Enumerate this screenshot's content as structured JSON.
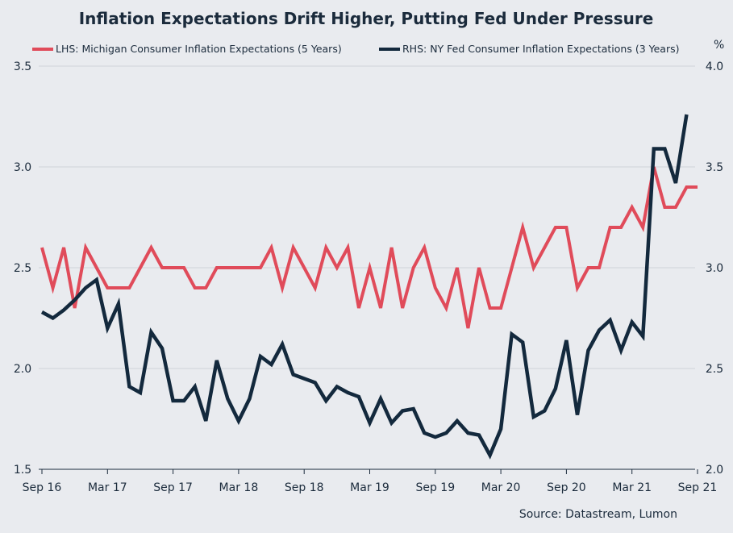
{
  "chart_data": {
    "type": "line",
    "title": "Inflation Expectations Drift Higher, Putting Fed Under Pressure",
    "source": "Source: Datastream, Lumon",
    "right_unit": "%",
    "x_tick_labels": [
      "Sep 16",
      "Mar 17",
      "Sep 17",
      "Mar 18",
      "Sep 18",
      "Mar 19",
      "Sep 19",
      "Mar 20",
      "Sep 20",
      "Mar 21",
      "Sep 21"
    ],
    "left_axis": {
      "ylim": [
        1.5,
        3.5
      ],
      "ticks": [
        "1.5",
        "2.0",
        "2.5",
        "3.0",
        "3.5"
      ]
    },
    "right_axis": {
      "ylim": [
        2.0,
        4.0
      ],
      "ticks": [
        "2.0",
        "2.5",
        "3.0",
        "3.5",
        "4.0"
      ]
    },
    "grid": true,
    "legend_position": "top",
    "series": [
      {
        "name": "LHS: Michigan Consumer Inflation Expectations (5 Years)",
        "axis": "left",
        "color": "#e04b5a",
        "x_start": "Sep 16",
        "values": [
          2.6,
          2.4,
          2.6,
          2.3,
          2.6,
          2.5,
          2.4,
          2.4,
          2.4,
          2.5,
          2.6,
          2.5,
          2.5,
          2.5,
          2.4,
          2.4,
          2.5,
          2.5,
          2.5,
          2.5,
          2.5,
          2.6,
          2.4,
          2.6,
          2.5,
          2.4,
          2.6,
          2.5,
          2.6,
          2.3,
          2.5,
          2.3,
          2.6,
          2.3,
          2.5,
          2.6,
          2.4,
          2.3,
          2.5,
          2.2,
          2.5,
          2.3,
          2.3,
          2.5,
          2.7,
          2.5,
          2.6,
          2.7,
          2.7,
          2.4,
          2.5,
          2.5,
          2.7,
          2.7,
          2.8,
          2.7,
          3.0,
          2.8,
          2.8,
          2.9,
          2.9
        ]
      },
      {
        "name": "RHS: NY Fed Consumer Inflation Expectations (3 Years)",
        "axis": "right",
        "color": "#13293d",
        "x_start": "Sep 16",
        "values": [
          2.78,
          2.75,
          2.79,
          2.84,
          2.9,
          2.94,
          2.7,
          2.82,
          2.41,
          2.38,
          2.68,
          2.6,
          2.34,
          2.34,
          2.41,
          2.24,
          2.54,
          2.35,
          2.24,
          2.35,
          2.56,
          2.52,
          2.62,
          2.47,
          2.45,
          2.43,
          2.34,
          2.41,
          2.38,
          2.36,
          2.23,
          2.35,
          2.23,
          2.29,
          2.3,
          2.18,
          2.16,
          2.18,
          2.24,
          2.18,
          2.17,
          2.07,
          2.2,
          2.67,
          2.63,
          2.26,
          2.29,
          2.4,
          2.64,
          2.27,
          2.59,
          2.69,
          2.74,
          2.59,
          2.73,
          2.66,
          3.59,
          3.59,
          3.42,
          3.76
        ]
      }
    ]
  }
}
